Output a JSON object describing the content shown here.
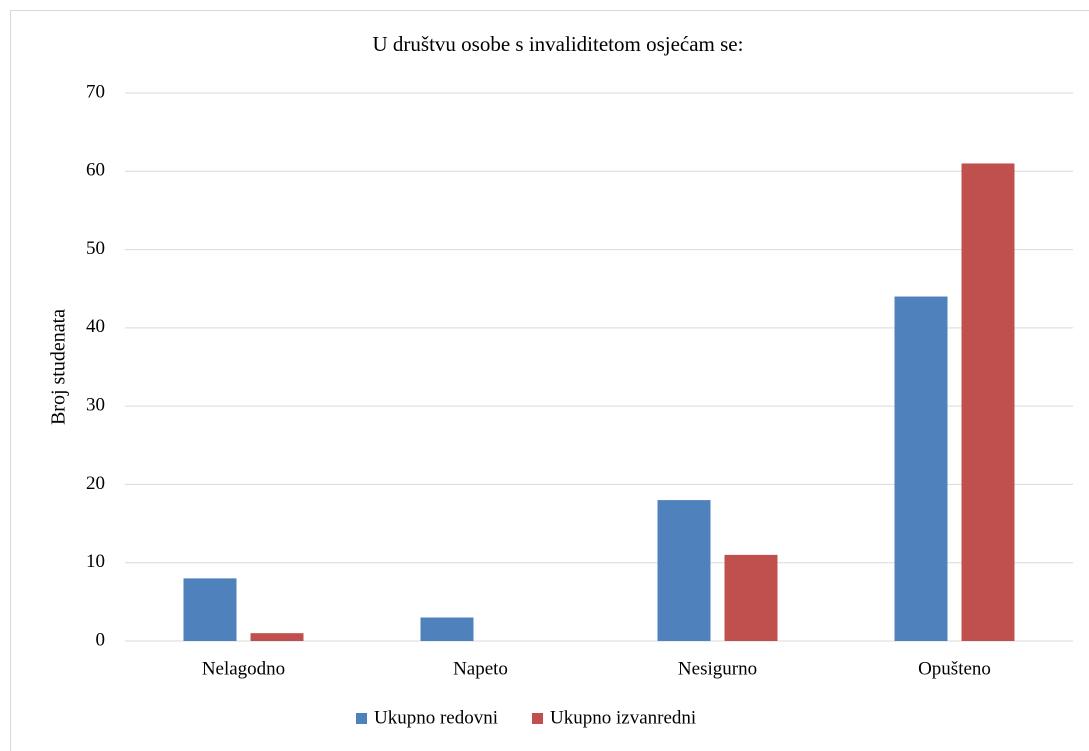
{
  "chart_data": {
    "type": "bar",
    "title": "U društvu osobe s invaliditetom osjećam se:",
    "y_label": "Broj studenata",
    "categories": [
      "Nelagodno",
      "Napeto",
      "Nesigurno",
      "Opušteno"
    ],
    "series": [
      {
        "name": "Ukupno redovni",
        "color": "#4f81bd",
        "values": [
          8,
          3,
          18,
          44
        ]
      },
      {
        "name": "Ukupno izvanredni",
        "color": "#c0504d",
        "values": [
          1,
          0,
          11,
          61
        ]
      }
    ],
    "ylim": [
      0,
      70
    ],
    "yticks": [
      0,
      10,
      20,
      30,
      40,
      50,
      60,
      70
    ],
    "grid": true,
    "legend": "bottom"
  }
}
